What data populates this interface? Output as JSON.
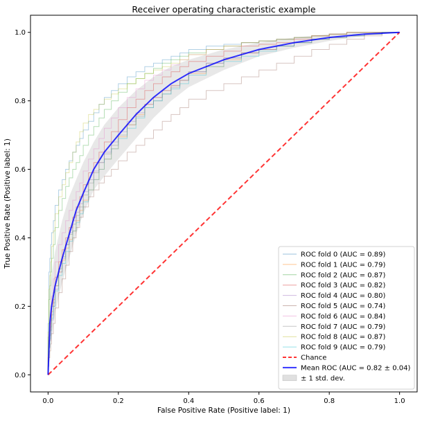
{
  "chart_data": {
    "type": "line",
    "title": "Receiver operating characteristic example",
    "xlabel": "False Positive Rate (Positive label: 1)",
    "ylabel": "True Positive Rate (Positive label: 1)",
    "xlim": [
      -0.05,
      1.05
    ],
    "ylim": [
      -0.05,
      1.05
    ],
    "xticks": [
      0.0,
      0.2,
      0.4,
      0.6,
      0.8,
      1.0
    ],
    "yticks": [
      0.0,
      0.2,
      0.4,
      0.6,
      0.8,
      1.0
    ],
    "xtick_labels": [
      "0.0",
      "0.2",
      "0.4",
      "0.6",
      "0.8",
      "1.0"
    ],
    "ytick_labels": [
      "0.0",
      "0.2",
      "0.4",
      "0.6",
      "0.8",
      "1.0"
    ],
    "grid": false,
    "legend_position": "lower-right",
    "folds": [
      {
        "name": "ROC fold 0 (AUC = 0.89)",
        "color": "#1f77b4",
        "x": [
          0,
          0.005,
          0.01,
          0.02,
          0.04,
          0.06,
          0.08,
          0.1,
          0.13,
          0.16,
          0.2,
          0.25,
          0.3,
          0.35,
          0.4,
          0.5,
          0.6,
          0.7,
          0.8,
          0.9,
          1.0
        ],
        "y": [
          0,
          0.3,
          0.38,
          0.45,
          0.54,
          0.6,
          0.65,
          0.69,
          0.74,
          0.79,
          0.83,
          0.87,
          0.9,
          0.92,
          0.94,
          0.96,
          0.97,
          0.98,
          0.99,
          1.0,
          1.0
        ]
      },
      {
        "name": "ROC fold 1 (AUC = 0.79)",
        "color": "#ff7f0e",
        "x": [
          0,
          0.005,
          0.01,
          0.02,
          0.04,
          0.06,
          0.08,
          0.1,
          0.13,
          0.16,
          0.2,
          0.25,
          0.3,
          0.35,
          0.4,
          0.5,
          0.6,
          0.7,
          0.8,
          0.9,
          1.0
        ],
        "y": [
          0,
          0.1,
          0.15,
          0.22,
          0.3,
          0.37,
          0.42,
          0.48,
          0.54,
          0.6,
          0.66,
          0.73,
          0.79,
          0.83,
          0.86,
          0.9,
          0.94,
          0.96,
          0.98,
          0.99,
          1.0
        ]
      },
      {
        "name": "ROC fold 2 (AUC = 0.87)",
        "color": "#2ca02c",
        "x": [
          0,
          0.005,
          0.01,
          0.02,
          0.04,
          0.06,
          0.08,
          0.1,
          0.13,
          0.16,
          0.2,
          0.25,
          0.3,
          0.35,
          0.4,
          0.5,
          0.6,
          0.7,
          0.8,
          0.9,
          1.0
        ],
        "y": [
          0,
          0.22,
          0.3,
          0.38,
          0.48,
          0.55,
          0.6,
          0.64,
          0.7,
          0.75,
          0.8,
          0.85,
          0.88,
          0.91,
          0.93,
          0.95,
          0.97,
          0.98,
          0.99,
          1.0,
          1.0
        ]
      },
      {
        "name": "ROC fold 3 (AUC = 0.82)",
        "color": "#d62728",
        "x": [
          0,
          0.005,
          0.01,
          0.02,
          0.04,
          0.06,
          0.08,
          0.1,
          0.13,
          0.16,
          0.2,
          0.25,
          0.3,
          0.35,
          0.4,
          0.5,
          0.6,
          0.7,
          0.8,
          0.9,
          1.0
        ],
        "y": [
          0,
          0.1,
          0.16,
          0.24,
          0.33,
          0.4,
          0.46,
          0.52,
          0.59,
          0.65,
          0.71,
          0.78,
          0.83,
          0.87,
          0.9,
          0.93,
          0.96,
          0.97,
          0.99,
          1.0,
          1.0
        ]
      },
      {
        "name": "ROC fold 4 (AUC = 0.80)",
        "color": "#9467bd",
        "x": [
          0,
          0.005,
          0.01,
          0.02,
          0.04,
          0.06,
          0.08,
          0.1,
          0.13,
          0.16,
          0.2,
          0.25,
          0.3,
          0.35,
          0.4,
          0.5,
          0.6,
          0.7,
          0.8,
          0.9,
          1.0
        ],
        "y": [
          0,
          0.08,
          0.12,
          0.2,
          0.3,
          0.38,
          0.45,
          0.5,
          0.57,
          0.62,
          0.68,
          0.74,
          0.79,
          0.83,
          0.86,
          0.91,
          0.94,
          0.96,
          0.98,
          0.99,
          1.0
        ]
      },
      {
        "name": "ROC fold 5 (AUC = 0.74)",
        "color": "#8c564b",
        "x": [
          0,
          0.005,
          0.01,
          0.02,
          0.04,
          0.06,
          0.08,
          0.1,
          0.13,
          0.16,
          0.2,
          0.25,
          0.3,
          0.35,
          0.4,
          0.5,
          0.6,
          0.7,
          0.8,
          0.9,
          1.0
        ],
        "y": [
          0,
          0.05,
          0.09,
          0.15,
          0.24,
          0.32,
          0.4,
          0.46,
          0.52,
          0.56,
          0.6,
          0.65,
          0.69,
          0.74,
          0.78,
          0.83,
          0.87,
          0.91,
          0.95,
          0.98,
          1.0
        ]
      },
      {
        "name": "ROC fold 6 (AUC = 0.84)",
        "color": "#e377c2",
        "x": [
          0,
          0.005,
          0.01,
          0.02,
          0.04,
          0.06,
          0.08,
          0.1,
          0.13,
          0.16,
          0.2,
          0.25,
          0.3,
          0.35,
          0.4,
          0.5,
          0.6,
          0.7,
          0.8,
          0.9,
          1.0
        ],
        "y": [
          0,
          0.12,
          0.18,
          0.28,
          0.38,
          0.45,
          0.51,
          0.56,
          0.63,
          0.69,
          0.75,
          0.81,
          0.86,
          0.89,
          0.92,
          0.95,
          0.97,
          0.98,
          0.99,
          1.0,
          1.0
        ]
      },
      {
        "name": "ROC fold 7 (AUC = 0.79)",
        "color": "#7f7f7f",
        "x": [
          0,
          0.005,
          0.01,
          0.02,
          0.04,
          0.06,
          0.08,
          0.1,
          0.13,
          0.16,
          0.2,
          0.25,
          0.3,
          0.35,
          0.4,
          0.5,
          0.6,
          0.7,
          0.8,
          0.9,
          1.0
        ],
        "y": [
          0,
          0.09,
          0.14,
          0.21,
          0.31,
          0.38,
          0.44,
          0.49,
          0.56,
          0.62,
          0.67,
          0.73,
          0.78,
          0.82,
          0.86,
          0.91,
          0.94,
          0.96,
          0.98,
          0.99,
          1.0
        ]
      },
      {
        "name": "ROC fold 8 (AUC = 0.87)",
        "color": "#bcbd22",
        "x": [
          0,
          0.005,
          0.01,
          0.02,
          0.04,
          0.06,
          0.08,
          0.1,
          0.13,
          0.16,
          0.2,
          0.25,
          0.3,
          0.35,
          0.4,
          0.5,
          0.6,
          0.7,
          0.8,
          0.9,
          1.0
        ],
        "y": [
          0,
          0.25,
          0.33,
          0.42,
          0.52,
          0.59,
          0.65,
          0.71,
          0.76,
          0.79,
          0.82,
          0.85,
          0.88,
          0.9,
          0.92,
          0.95,
          0.97,
          0.98,
          0.99,
          1.0,
          1.0
        ]
      },
      {
        "name": "ROC fold 9 (AUC = 0.79)",
        "color": "#17becf",
        "x": [
          0,
          0.005,
          0.01,
          0.02,
          0.04,
          0.06,
          0.08,
          0.1,
          0.13,
          0.16,
          0.2,
          0.25,
          0.3,
          0.35,
          0.4,
          0.5,
          0.6,
          0.7,
          0.8,
          0.9,
          1.0
        ],
        "y": [
          0,
          0.08,
          0.13,
          0.2,
          0.29,
          0.36,
          0.42,
          0.47,
          0.54,
          0.6,
          0.66,
          0.72,
          0.78,
          0.82,
          0.85,
          0.9,
          0.93,
          0.96,
          0.98,
          0.99,
          1.0
        ]
      }
    ],
    "chance": {
      "name": "Chance",
      "color": "#ff0000",
      "x": [
        0,
        1
      ],
      "y": [
        0,
        1
      ]
    },
    "mean": {
      "name": "Mean ROC (AUC = 0.82 ± 0.04)",
      "color": "#0000ff",
      "x": [
        0,
        0.005,
        0.01,
        0.02,
        0.04,
        0.06,
        0.08,
        0.1,
        0.13,
        0.16,
        0.2,
        0.25,
        0.3,
        0.35,
        0.4,
        0.5,
        0.6,
        0.7,
        0.8,
        0.9,
        1.0
      ],
      "y": [
        0,
        0.15,
        0.2,
        0.26,
        0.34,
        0.41,
        0.48,
        0.53,
        0.6,
        0.65,
        0.7,
        0.76,
        0.81,
        0.85,
        0.88,
        0.92,
        0.95,
        0.97,
        0.985,
        0.995,
        1.0
      ]
    },
    "std_band": {
      "name": "± 1 std. dev.",
      "color": "#cccccc",
      "x": [
        0,
        0.005,
        0.01,
        0.02,
        0.04,
        0.06,
        0.08,
        0.1,
        0.13,
        0.16,
        0.2,
        0.25,
        0.3,
        0.35,
        0.4,
        0.5,
        0.6,
        0.7,
        0.8,
        0.9,
        1.0
      ],
      "lower": [
        0,
        0.07,
        0.11,
        0.18,
        0.27,
        0.34,
        0.41,
        0.47,
        0.54,
        0.58,
        0.63,
        0.69,
        0.75,
        0.8,
        0.84,
        0.89,
        0.93,
        0.955,
        0.975,
        0.99,
        1.0
      ],
      "upper": [
        0,
        0.23,
        0.29,
        0.36,
        0.45,
        0.52,
        0.57,
        0.62,
        0.68,
        0.73,
        0.78,
        0.83,
        0.87,
        0.9,
        0.92,
        0.95,
        0.97,
        0.985,
        0.995,
        1.0,
        1.0
      ]
    }
  }
}
